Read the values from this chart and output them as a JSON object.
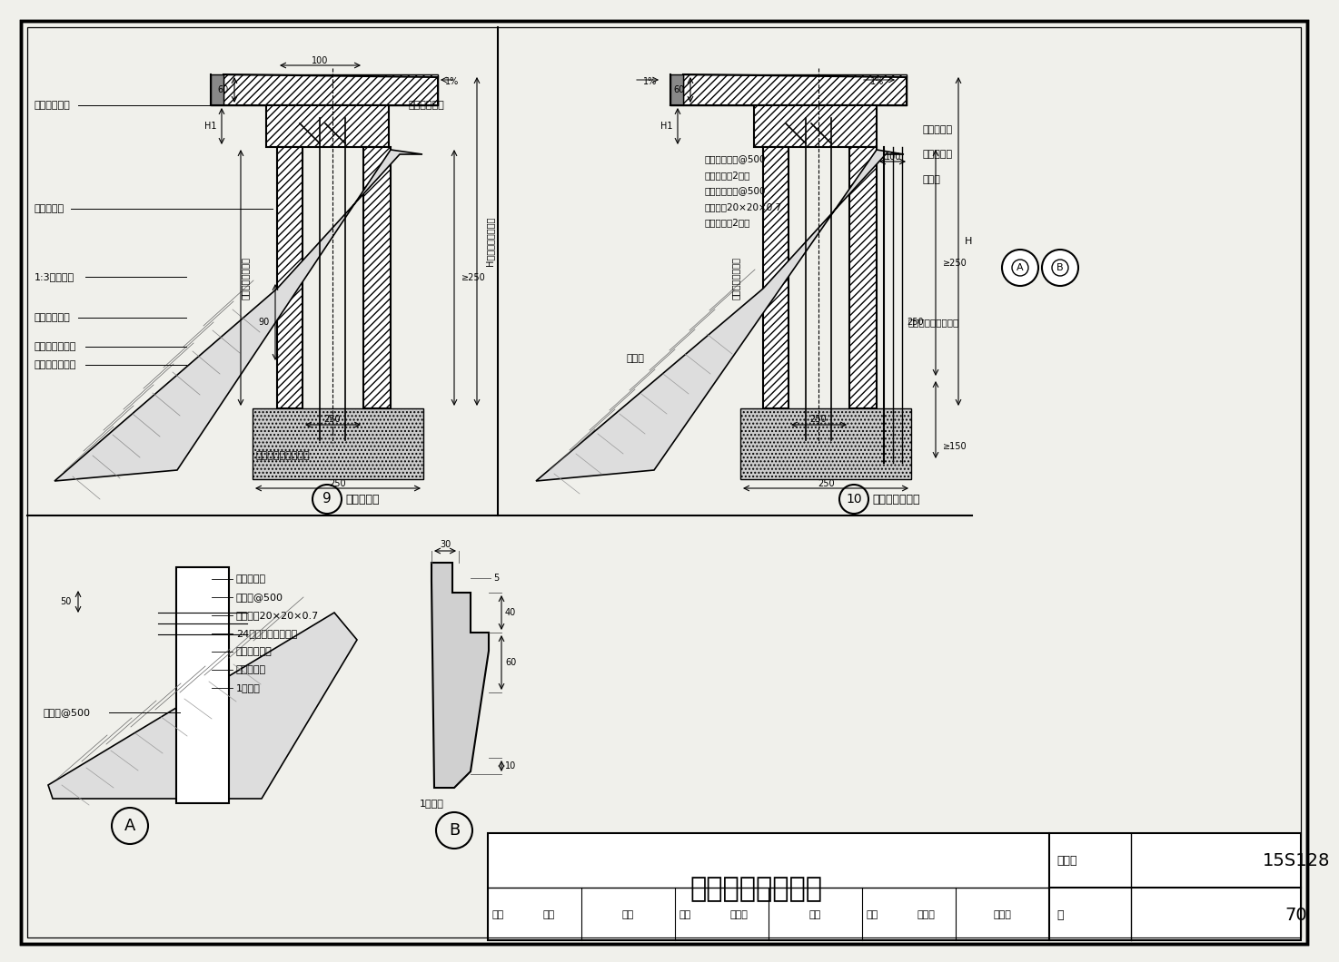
{
  "title": "坡屋面管道井详图",
  "atlas_number": "15S128",
  "page": "70",
  "bg_color": "#f0f0eb",
  "diag9_label": "9",
  "diag9_sub": "（瓦屋面）",
  "diag10_label": "10",
  "diag10_sub": "（油毡瓦屋面）",
  "diag9_annots_left": [
    "防水材料封堵",
    "穿屋面管道",
    "1:3水泥砂浆",
    "钢、木挂瓦条",
    "有无保温隔热层",
    "见个体工程设计"
  ],
  "diag9_wall_label": "墙体材料详个体设计",
  "diag9_vert_label": "（或见个体工程）",
  "diag9_H_label": "H（或见个体工程）",
  "diag9_dims": [
    "100",
    "1%",
    "60",
    "H1",
    "≥250",
    "250",
    "90",
    "250"
  ],
  "diag10_annots_mid": [
    "水泥钉或射钉@500",
    "（每边至少2个）",
    "水泥钉或射钉@500",
    "镀锌垫片20×20×0.7",
    "（每边至少2个）"
  ],
  "diag10_annots_right": [
    "密封胶封严",
    "附加防水层",
    "防水层"
  ],
  "diag10_annots_other": [
    "防水材料封堵",
    "油毡瓦",
    "墙体材料详个体设计"
  ],
  "diag10_dims": [
    "1%",
    "1%",
    "60",
    "H1",
    "≥250",
    "≥150",
    "250",
    "250",
    "100",
    "H"
  ],
  "diag10_vert_label": "（或见个体工程）",
  "diagA_annots": [
    "密封胶封严",
    "水泥钉@500",
    "镀锌垫片20×20×0.7",
    "24号镀锌薄钢板泛水",
    "管道口防水层",
    "附加防水层",
    "1厚铝板"
  ],
  "diagA_left": "水泥钉@500",
  "diagA_dim": "50",
  "diagB_dims": [
    "30",
    "5",
    "40",
    "60",
    "10"
  ],
  "diagB_label": "1厚铝板",
  "title_row1": [
    [
      "审核",
      "曾雁"
    ],
    [
      "汤正",
      ""
    ],
    [
      "校对",
      "鲁永飞"
    ],
    [
      "至州",
      ""
    ],
    [
      "设计",
      "鞠晓磊"
    ],
    [
      "柳吹茧",
      ""
    ]
  ],
  "title_label_atlas": "图集号",
  "title_label_page": "页"
}
